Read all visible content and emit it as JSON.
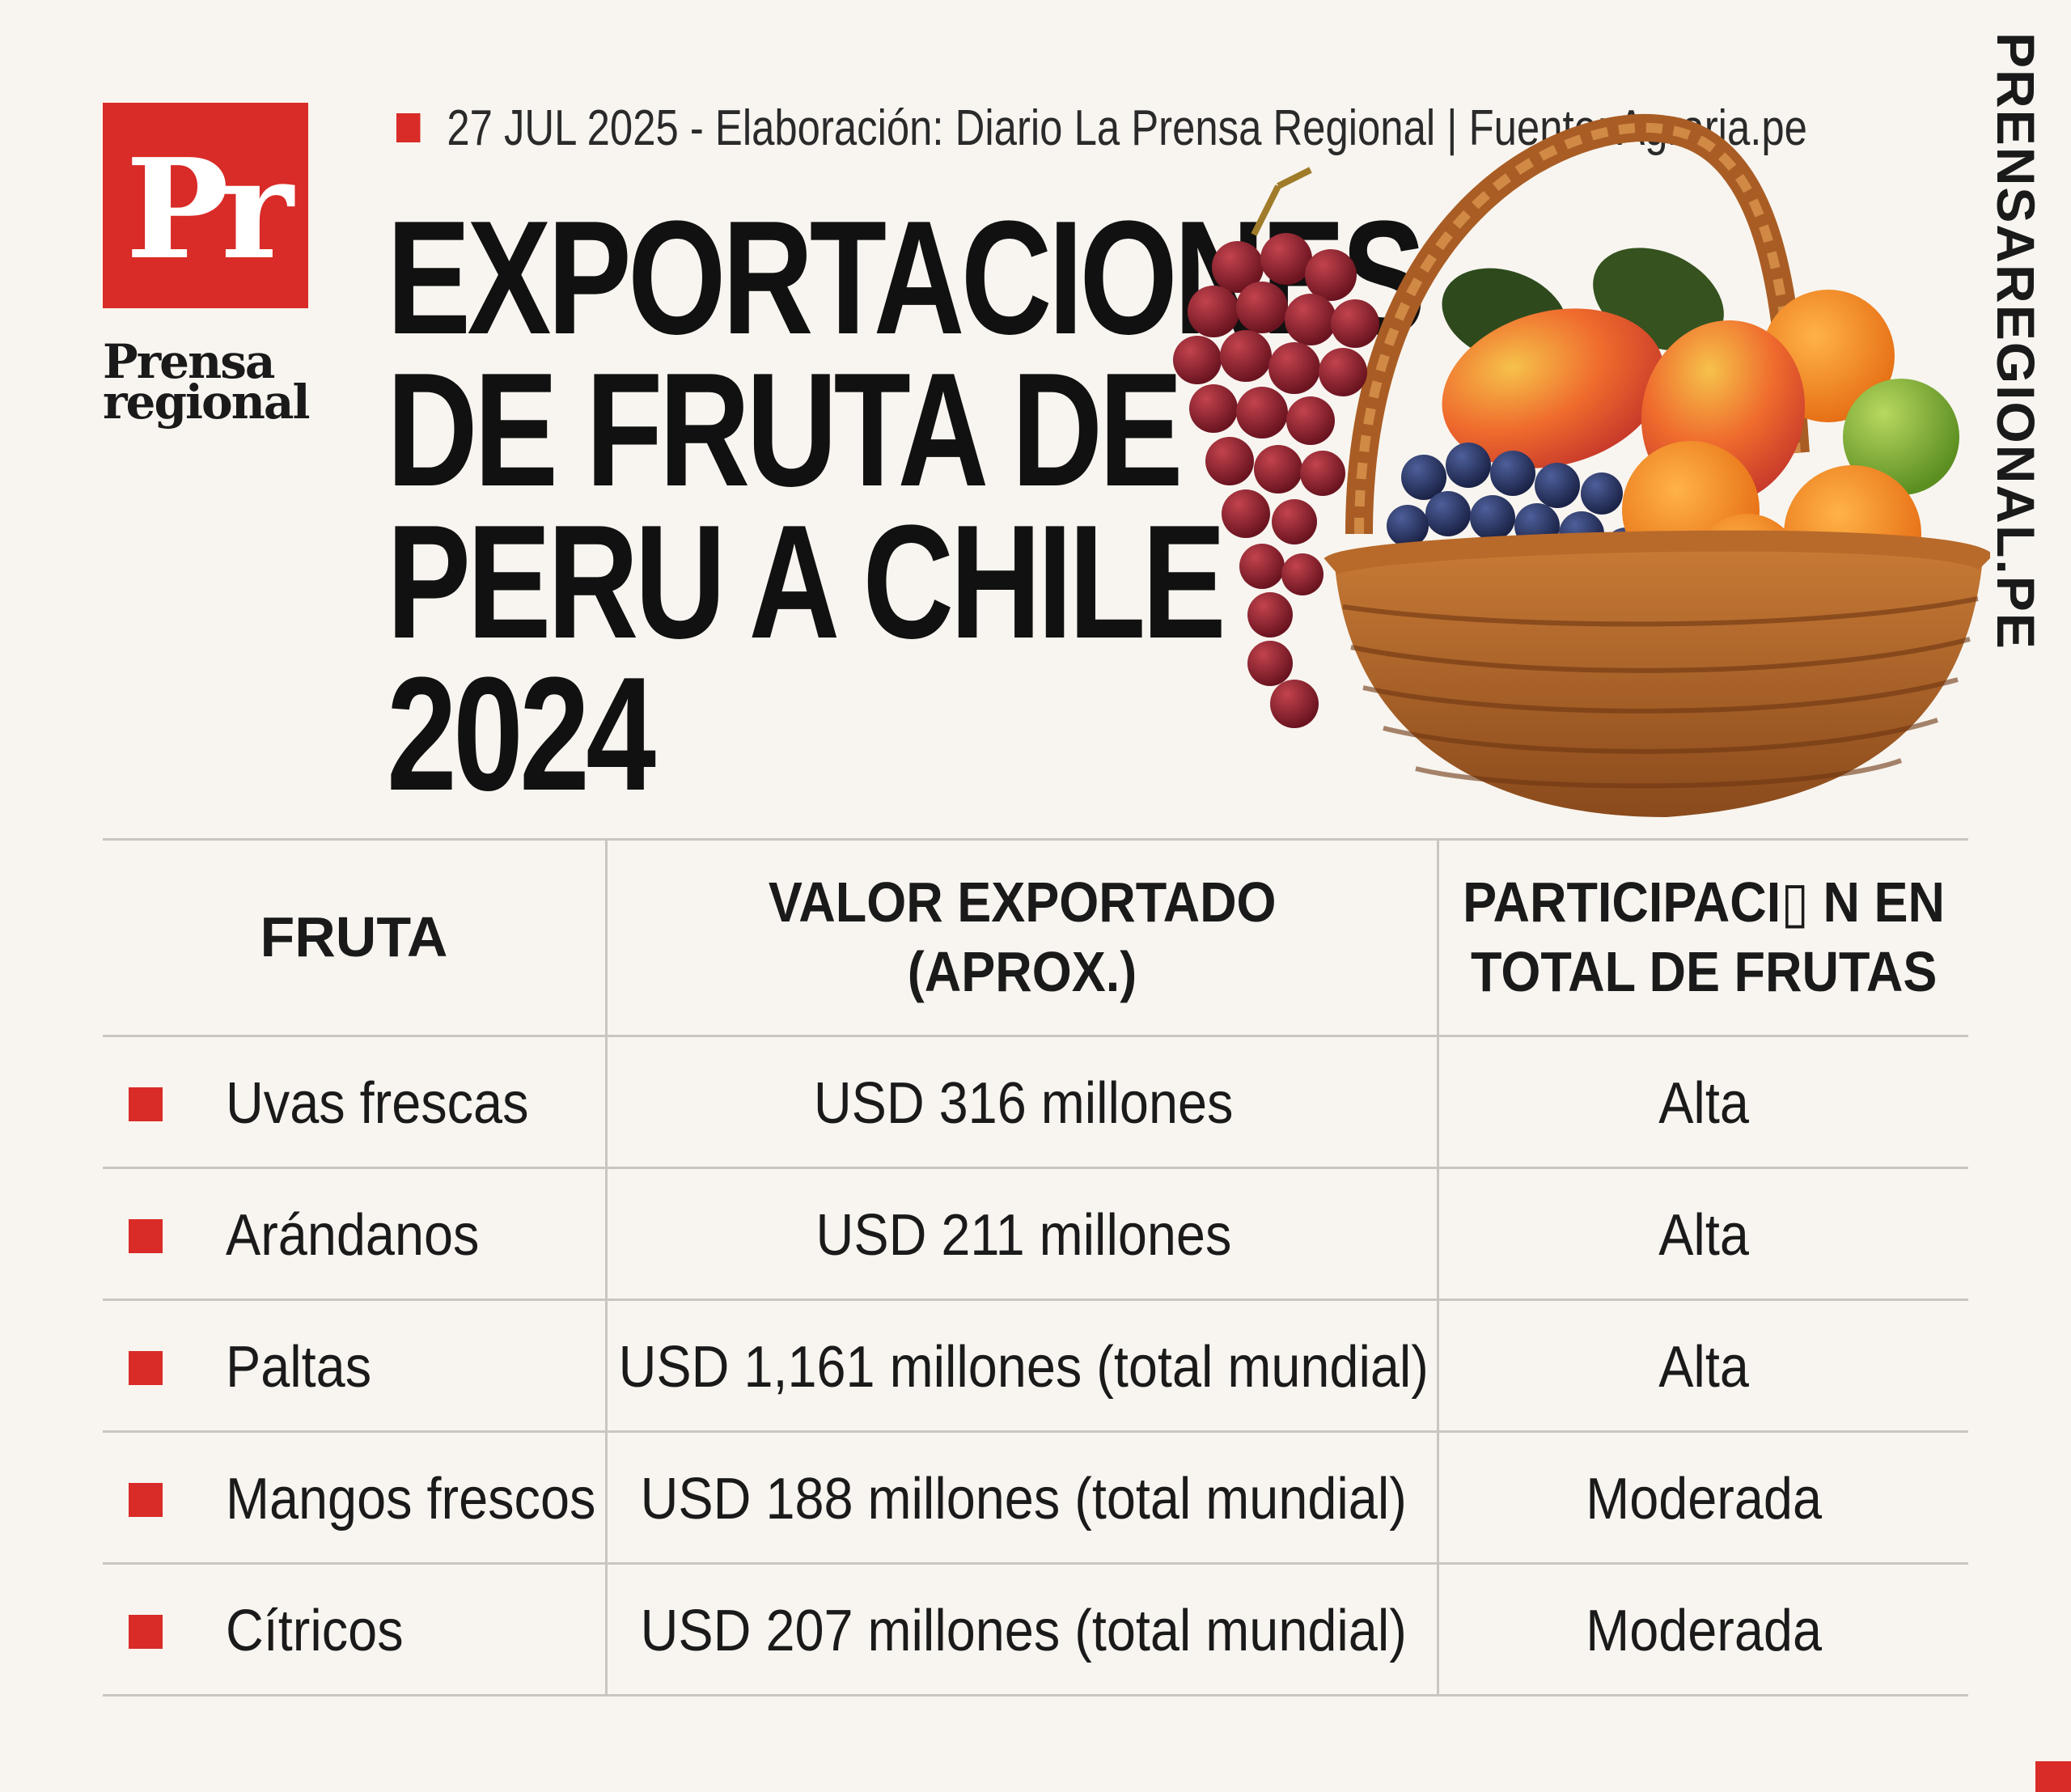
{
  "brand": {
    "logo_mark": "Pr",
    "logo_word_1": "Prensa",
    "logo_word_2": "regional",
    "vertical_text": "PRENSAREGIONAL.PE",
    "accent_color": "#d92b27"
  },
  "meta": {
    "line": "27 JUL 2025 -  Elaboración: Diario La Prensa Regional | Fuente: Agraria.pe"
  },
  "title": {
    "line1": "EXPORTACIONES",
    "line2": "DE FRUTA DE",
    "line3": "PERU A CHILE",
    "line4": "2024"
  },
  "image": {
    "icon": "fruit-basket-illustration"
  },
  "table": {
    "headers": {
      "fruta": "FRUTA",
      "valor_1": "VALOR EXPORTADO",
      "valor_2": "(APROX.)",
      "part_1": "PARTICIPACI▯ N EN",
      "part_2": "TOTAL DE FRUTAS"
    },
    "rows": [
      {
        "fruta": "Uvas frescas",
        "valor": "USD 316 millones",
        "participacion": "Alta"
      },
      {
        "fruta": "Arándanos",
        "valor": "USD 211 millones",
        "participacion": "Alta"
      },
      {
        "fruta": "Paltas",
        "valor": "USD 1,161 millones (total mundial)",
        "participacion": "Alta"
      },
      {
        "fruta": "Mangos frescos",
        "valor": "USD 188 millones (total mundial)",
        "participacion": "Moderada"
      },
      {
        "fruta": "Cítricos",
        "valor": "USD 207 millones (total mundial)",
        "participacion": "Moderada"
      }
    ]
  }
}
